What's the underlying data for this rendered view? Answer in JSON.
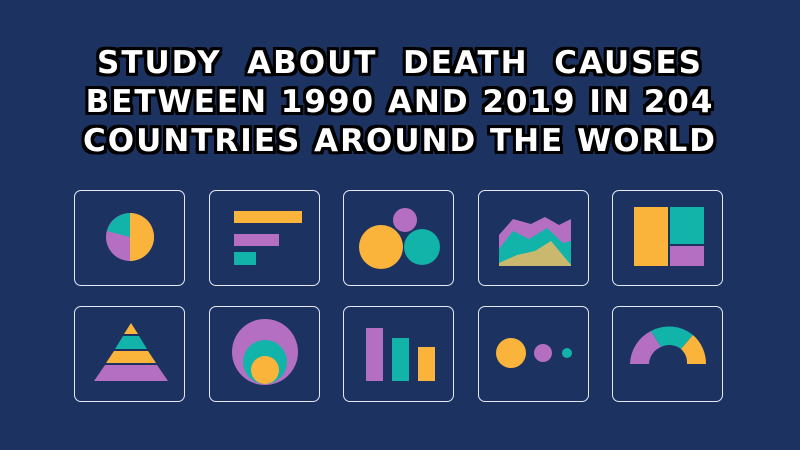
{
  "title": {
    "line1": "STUDY  ABOUT  DEATH  CAUSES",
    "line2": "BETWEEN 1990 AND 2019 IN 204",
    "line3": "COUNTRIES AROUND THE WORLD"
  },
  "colors": {
    "background": "#1c3362",
    "yellow": "#fbb43b",
    "purple": "#b46fc2",
    "teal": "#12b3a8",
    "tile_border": "#e6e9f2"
  },
  "icons": [
    "pie-chart-icon",
    "horizontal-bar-chart-icon",
    "bubble-chart-icon",
    "area-chart-icon",
    "treemap-icon",
    "pyramid-chart-icon",
    "nested-circles-icon",
    "vertical-bar-chart-icon",
    "dot-size-chart-icon",
    "semicircle-gauge-icon"
  ]
}
